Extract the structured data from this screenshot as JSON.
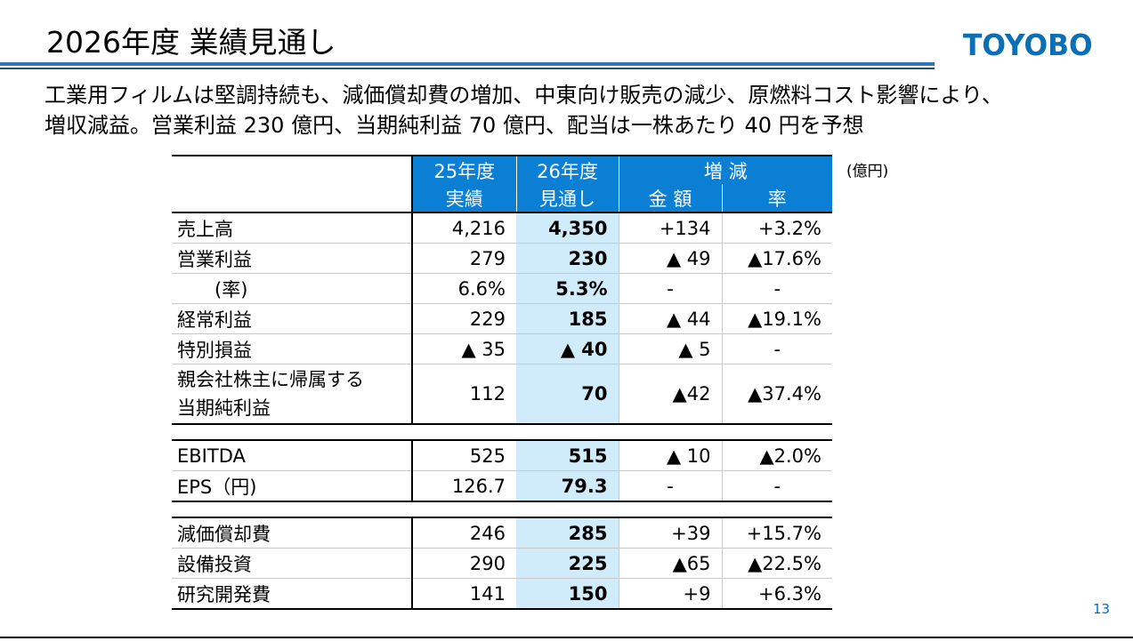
{
  "header": {
    "title": "2026年度 業績見通し",
    "logo_text": "TOYOBO",
    "brand_color": "#0a6fb5"
  },
  "lead": {
    "line1": "工業用フィルムは堅調持続も、減価償却費の増加、中東向け販売の減少、原燃料コスト影響により、",
    "line2": "増収減益。営業利益 230 億円、当期純利益 70 億円、配当は一株あたり 40 円を予想"
  },
  "table": {
    "unit": "(億円)",
    "headers": {
      "fy25": "25年度",
      "fy25_sub": "実績",
      "fy26": "26年度",
      "fy26_sub": "見通し",
      "change": "増 減",
      "change_amount": "金 額",
      "change_rate": "率"
    },
    "rows": [
      {
        "label": "売上高",
        "fy25": "4,216",
        "fy26": "4,350",
        "amount": "+134",
        "rate": "+3.2%"
      },
      {
        "label": "営業利益",
        "fy25": "279",
        "fy26": "230",
        "amount": "▲ 49",
        "rate": "▲17.6%"
      },
      {
        "label": "　　(率)",
        "fy25": "6.6%",
        "fy26": "5.3%",
        "amount": "-",
        "rate": "-"
      },
      {
        "label": "経常利益",
        "fy25": "229",
        "fy26": "185",
        "amount": "▲ 44",
        "rate": "▲19.1%"
      },
      {
        "label": "特別損益",
        "fy25": "▲ 35",
        "fy26": "▲ 40",
        "amount": "▲ 5",
        "rate": "-"
      },
      {
        "label": "親会社株主に帰属する",
        "label2": "当期純利益",
        "fy25": "112",
        "fy26": "70",
        "amount": "▲42",
        "rate": "▲37.4%"
      },
      {
        "label": "EBITDA",
        "fy25": "525",
        "fy26": "515",
        "amount": "▲ 10",
        "rate": "▲2.0%"
      },
      {
        "label": "EPS（円)",
        "fy25": "126.7",
        "fy26": "79.3",
        "amount": "-",
        "rate": "-"
      },
      {
        "label": "減価償却費",
        "fy25": "246",
        "fy26": "285",
        "amount": "+39",
        "rate": "+15.7%"
      },
      {
        "label": "設備投資",
        "fy25": "290",
        "fy26": "225",
        "amount": "▲65",
        "rate": "▲22.5%"
      },
      {
        "label": "研究開発費",
        "fy25": "141",
        "fy26": "150",
        "amount": "+9",
        "rate": "+6.3%"
      }
    ]
  },
  "footer": {
    "page_number": "13"
  }
}
